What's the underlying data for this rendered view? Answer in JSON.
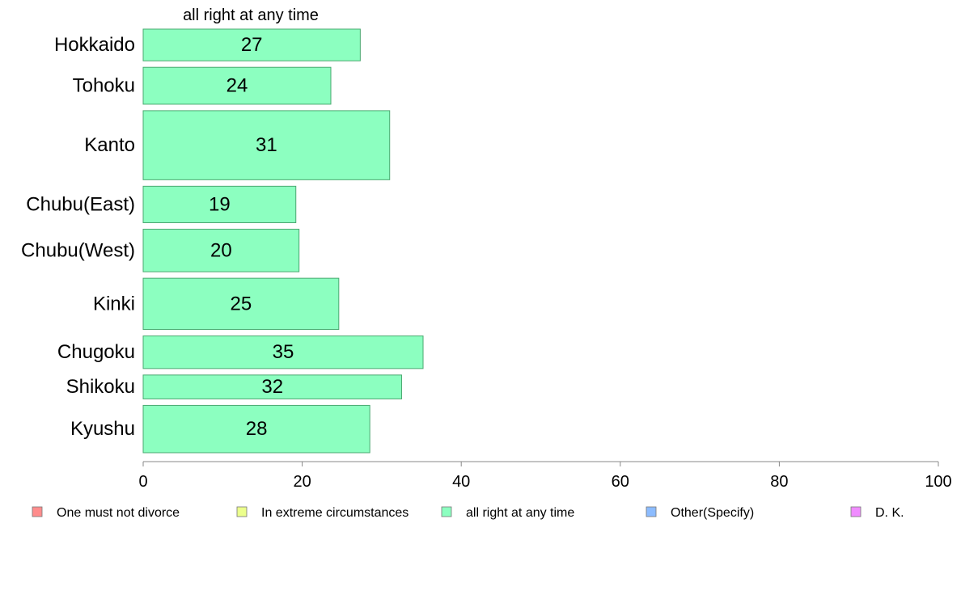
{
  "chart_data": {
    "type": "bar",
    "orientation": "horizontal",
    "title": "all right at any time",
    "categories": [
      "Hokkaido",
      "Tohoku",
      "Kanto",
      "Chubu(East)",
      "Chubu(West)",
      "Kinki",
      "Chugoku",
      "Shikoku",
      "Kyushu"
    ],
    "values": [
      27.3,
      23.6,
      31.0,
      19.2,
      19.6,
      24.6,
      35.2,
      32.5,
      28.5
    ],
    "value_labels": [
      "27",
      "24",
      "31",
      "19",
      "20",
      "25",
      "35",
      "32",
      "28"
    ],
    "relative_weights": [
      0.73,
      0.85,
      1.59,
      0.84,
      0.98,
      1.18,
      0.75,
      0.55,
      1.09
    ],
    "xlim": [
      0,
      100
    ],
    "xticks": [
      "0",
      "20",
      "40",
      "60",
      "80",
      "100"
    ],
    "bar_color": "#8cffc0",
    "bar_edge_color": "#4aa870",
    "axis_color": "#888888",
    "grid": false,
    "legend_position": "bottom",
    "legend": [
      {
        "label": "One must not divorce",
        "color": "#ff8c8c"
      },
      {
        "label": "In extreme circumstances",
        "color": "#ecff8c"
      },
      {
        "label": "all right at any time",
        "color": "#8cffc0"
      },
      {
        "label": "Other(Specify)",
        "color": "#8cbcff"
      },
      {
        "label": "D. K.",
        "color": "#f08cff"
      }
    ]
  }
}
